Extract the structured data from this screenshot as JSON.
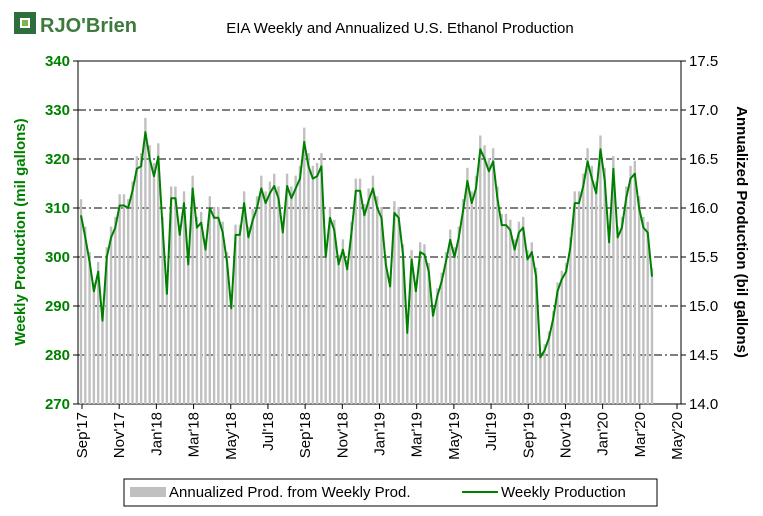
{
  "logo": {
    "text": "RJO'Brien"
  },
  "chart_data": {
    "type": "bar+line",
    "title": "EIA Weekly and Annualized U.S. Ethanol Production",
    "ylabel_left": "Weekly Production (mil gallons)",
    "ylabel_right": "Annualized Production (bil gallons)",
    "ylim_left": [
      270,
      340
    ],
    "ylim_right": [
      14.0,
      17.5
    ],
    "yticks_left": [
      "270",
      "280",
      "290",
      "300",
      "310",
      "320",
      "330",
      "340"
    ],
    "yticks_right": [
      "14.0",
      "14.5",
      "15.0",
      "15.5",
      "16.0",
      "16.5",
      "17.0",
      "17.5"
    ],
    "xtick_labels": [
      "Sep'17",
      "Nov'17",
      "Jan'18",
      "Mar'18",
      "May'18",
      "Jul'18",
      "Sep'18",
      "Nov'18",
      "Jan'19",
      "Mar'19",
      "May'19",
      "Jul'19",
      "Sep'19",
      "Nov'19",
      "Jan'20",
      "Mar'20",
      "May'20"
    ],
    "grid": true,
    "legend": {
      "position": "bottom",
      "bar_label": "Annualized Prod. from Weekly Prod.",
      "line_label": "Weekly Production"
    },
    "colors": {
      "bars": "#c0c0c0",
      "line": "#008000",
      "axis_text_left": "#008000",
      "axis_text_right": "#000000"
    },
    "series": [
      {
        "name": "Weekly Production",
        "type": "line",
        "axis": "left",
        "values": [
          308.5,
          304,
          299,
          293,
          297,
          287,
          300,
          304,
          306,
          310.5,
          310.5,
          310,
          313.5,
          318,
          318.5,
          325.5,
          320,
          316.5,
          320.5,
          306,
          292.5,
          312,
          312,
          304.5,
          311,
          298.5,
          314,
          306,
          307,
          301.5,
          310,
          308,
          308,
          305,
          299,
          289.5,
          304.5,
          304.5,
          311,
          304,
          307.5,
          310,
          314,
          311,
          313,
          314.5,
          312,
          305,
          314.5,
          312,
          314,
          316,
          323.5,
          318.5,
          316,
          316.5,
          318.5,
          300,
          308,
          305.5,
          298.5,
          301.5,
          297.5,
          305,
          313.5,
          313.5,
          308.5,
          311.5,
          314,
          310,
          308,
          298.5,
          294,
          309,
          308,
          300.5,
          284.5,
          299.5,
          293,
          301,
          300.5,
          297,
          288,
          292,
          295,
          299,
          303.5,
          300,
          304,
          309.5,
          315.5,
          311,
          314,
          322,
          320,
          317.5,
          319.5,
          312,
          306.5,
          306.5,
          305.5,
          301.5,
          305,
          306,
          299.5,
          301,
          296,
          279.5,
          281,
          283.5,
          287.5,
          293,
          295.5,
          297,
          302,
          311,
          311,
          314.5,
          319.5,
          316,
          313,
          322,
          315.5,
          303,
          318,
          304,
          306,
          312,
          316,
          317,
          310,
          306,
          305,
          296
        ]
      },
      {
        "name": "Annualized Prod. from Weekly Prod.",
        "type": "bar",
        "axis": "right",
        "values": [
          16.09,
          15.81,
          15.55,
          15.24,
          15.45,
          14.93,
          15.6,
          15.81,
          15.91,
          16.14,
          16.14,
          16.09,
          16.27,
          16.53,
          16.56,
          16.92,
          16.64,
          16.46,
          16.66,
          15.91,
          15.2,
          16.22,
          16.22,
          15.83,
          16.17,
          15.52,
          16.33,
          15.91,
          15.96,
          15.68,
          16.12,
          16.01,
          16.01,
          15.86,
          15.55,
          15.05,
          15.83,
          15.83,
          16.17,
          15.81,
          15.99,
          16.12,
          16.33,
          16.17,
          16.27,
          16.35,
          16.22,
          15.86,
          16.35,
          16.22,
          16.33,
          16.43,
          16.82,
          16.56,
          16.43,
          16.46,
          16.56,
          15.6,
          16.01,
          15.88,
          15.52,
          15.68,
          15.47,
          15.86,
          16.3,
          16.3,
          16.04,
          16.2,
          16.33,
          16.12,
          16.01,
          15.52,
          15.29,
          16.07,
          16.01,
          15.63,
          14.79,
          15.57,
          15.24,
          15.65,
          15.63,
          15.44,
          14.98,
          15.18,
          15.34,
          15.55,
          15.78,
          15.6,
          15.81,
          16.09,
          16.41,
          16.17,
          16.33,
          16.74,
          16.64,
          16.51,
          16.61,
          16.22,
          15.94,
          15.94,
          15.88,
          15.68,
          15.86,
          15.91,
          15.57,
          15.65,
          15.39,
          14.53,
          14.61,
          14.74,
          14.95,
          15.24,
          15.36,
          15.44,
          15.7,
          16.17,
          16.17,
          16.35,
          16.61,
          16.43,
          16.27,
          16.74,
          16.41,
          15.76,
          16.53,
          15.81,
          15.91,
          16.22,
          16.43,
          16.48,
          16.12,
          15.91,
          15.86,
          15.39
        ]
      }
    ]
  }
}
